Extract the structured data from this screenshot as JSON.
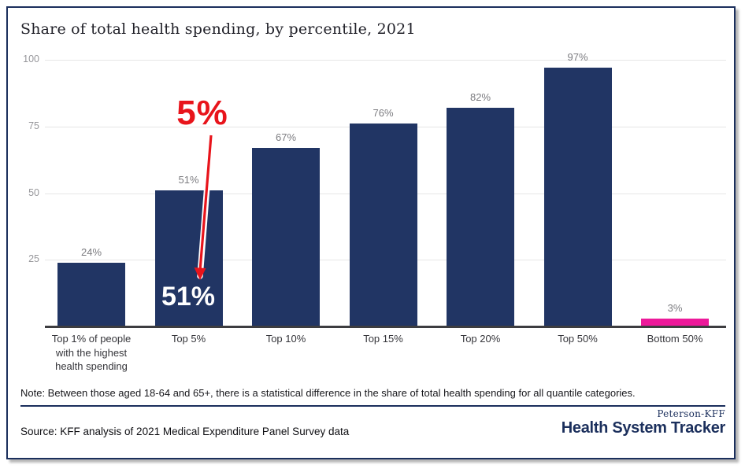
{
  "title": "Share of total health spending, by percentile, 2021",
  "chart_data": {
    "type": "bar",
    "title": "Share of total health spending, by percentile, 2021",
    "categories": [
      "Top 1% of people with the highest health spending",
      "Top 5%",
      "Top 10%",
      "Top 15%",
      "Top 20%",
      "Top 50%",
      "Bottom 50%"
    ],
    "values": [
      24,
      51,
      67,
      76,
      82,
      97,
      3
    ],
    "value_labels": [
      "24%",
      "51%",
      "67%",
      "76%",
      "82%",
      "97%",
      "3%"
    ],
    "bar_colors": [
      "#213564",
      "#213564",
      "#213564",
      "#213564",
      "#213564",
      "#213564",
      "#ec199a"
    ],
    "ylim": [
      0,
      100
    ],
    "yticks": [
      25,
      50,
      75,
      100
    ],
    "ytick_labels": [
      "25",
      "50",
      "75",
      "100"
    ],
    "grid": true,
    "legend": "none",
    "annotation": {
      "callout_text": "5%",
      "in_bar_text": "51%",
      "target_category": "Top 5%",
      "color": "#e8141b"
    }
  },
  "note": "Note: Between those aged 18-64 and 65+, there is a statistical difference in the share of total health spending for all quantile categories.",
  "source": "Source: KFF analysis of 2021 Medical Expenditure Panel Survey data",
  "logo": {
    "top": "Peterson-KFF",
    "bottom": "Health System Tracker"
  },
  "colors": {
    "bar_navy": "#213564",
    "bar_pink": "#ec199a",
    "annotation_red": "#e8141b",
    "brand_navy": "#1b2f5c",
    "gridline": "#e6e6e6"
  }
}
